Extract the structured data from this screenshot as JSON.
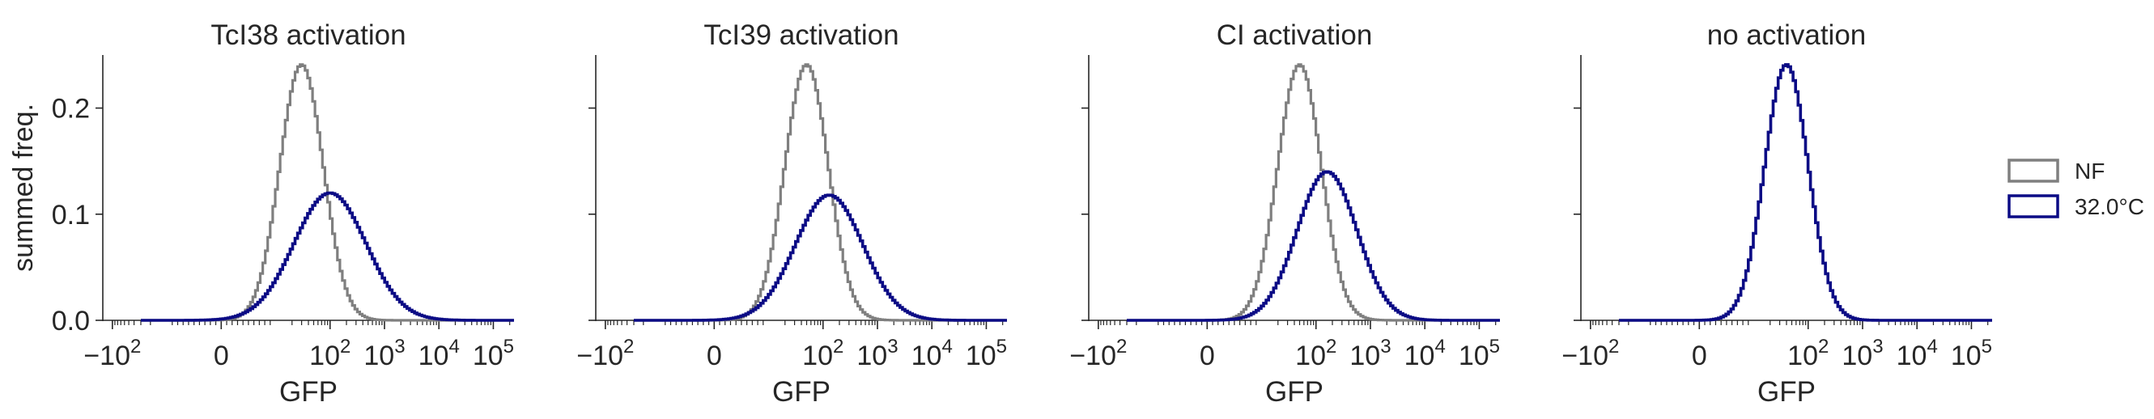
{
  "chart_data": [
    {
      "type": "histogram-step",
      "title": "TcI38 activation",
      "xlabel": "GFP",
      "ylabel": "summed freq.",
      "xscale": "symlog",
      "ylim": [
        0,
        0.25
      ],
      "yticks": [
        "0.0",
        "0.1",
        "0.2"
      ],
      "xticks": [
        {
          "base": "−10",
          "exp": "2"
        },
        {
          "base": "0",
          "exp": ""
        },
        {
          "base": "10",
          "exp": "2"
        },
        {
          "base": "10",
          "exp": "3"
        },
        {
          "base": "10",
          "exp": "4"
        },
        {
          "base": "10",
          "exp": "5"
        }
      ],
      "series": [
        {
          "name": "NF",
          "color": "#7f7f7f",
          "peak_gfp": 30,
          "peak_freq": 0.241,
          "width": 0.4
        },
        {
          "name": "32.0°C",
          "color": "#0b0b85",
          "peak_gfp": 100,
          "peak_freq": 0.12,
          "width": 0.66
        }
      ]
    },
    {
      "type": "histogram-step",
      "title": "TcI39 activation",
      "xlabel": "GFP",
      "ylabel": "",
      "xscale": "symlog",
      "ylim": [
        0,
        0.25
      ],
      "yticks": [
        "0.0",
        "0.1",
        "0.2"
      ],
      "xticks": [
        {
          "base": "−10",
          "exp": "2"
        },
        {
          "base": "0",
          "exp": ""
        },
        {
          "base": "10",
          "exp": "2"
        },
        {
          "base": "10",
          "exp": "3"
        },
        {
          "base": "10",
          "exp": "4"
        },
        {
          "base": "10",
          "exp": "5"
        }
      ],
      "series": [
        {
          "name": "NF",
          "color": "#7f7f7f",
          "peak_gfp": 50,
          "peak_freq": 0.241,
          "width": 0.4
        },
        {
          "name": "32.0°C",
          "color": "#0b0b85",
          "peak_gfp": 130,
          "peak_freq": 0.118,
          "width": 0.62
        }
      ]
    },
    {
      "type": "histogram-step",
      "title": "CI activation",
      "xlabel": "GFP",
      "ylabel": "",
      "xscale": "symlog",
      "ylim": [
        0,
        0.25
      ],
      "yticks": [
        "0.0",
        "0.1",
        "0.2"
      ],
      "xticks": [
        {
          "base": "−10",
          "exp": "2"
        },
        {
          "base": "0",
          "exp": ""
        },
        {
          "base": "10",
          "exp": "2"
        },
        {
          "base": "10",
          "exp": "3"
        },
        {
          "base": "10",
          "exp": "4"
        },
        {
          "base": "10",
          "exp": "5"
        }
      ],
      "series": [
        {
          "name": "NF",
          "color": "#7f7f7f",
          "peak_gfp": 50,
          "peak_freq": 0.241,
          "width": 0.4
        },
        {
          "name": "32.0°C",
          "color": "#0b0b85",
          "peak_gfp": 160,
          "peak_freq": 0.14,
          "width": 0.55
        }
      ]
    },
    {
      "type": "histogram-step",
      "title": "no activation",
      "xlabel": "GFP",
      "ylabel": "",
      "xscale": "symlog",
      "ylim": [
        0,
        0.25
      ],
      "yticks": [
        "0.0",
        "0.1",
        "0.2"
      ],
      "xticks": [
        {
          "base": "−10",
          "exp": "2"
        },
        {
          "base": "0",
          "exp": ""
        },
        {
          "base": "10",
          "exp": "2"
        },
        {
          "base": "10",
          "exp": "3"
        },
        {
          "base": "10",
          "exp": "4"
        },
        {
          "base": "10",
          "exp": "5"
        }
      ],
      "series": [
        {
          "name": "NF",
          "color": "#7f7f7f",
          "peak_gfp": 40,
          "peak_freq": 0.241,
          "width": 0.4
        },
        {
          "name": "32.0°C",
          "color": "#0b0b85",
          "peak_gfp": 40,
          "peak_freq": 0.241,
          "width": 0.4
        }
      ]
    }
  ],
  "legend": {
    "placement": "right",
    "items": [
      {
        "label": "NF",
        "color": "#7f7f7f"
      },
      {
        "label": "32.0°C",
        "color": "#0b0b85"
      }
    ]
  }
}
